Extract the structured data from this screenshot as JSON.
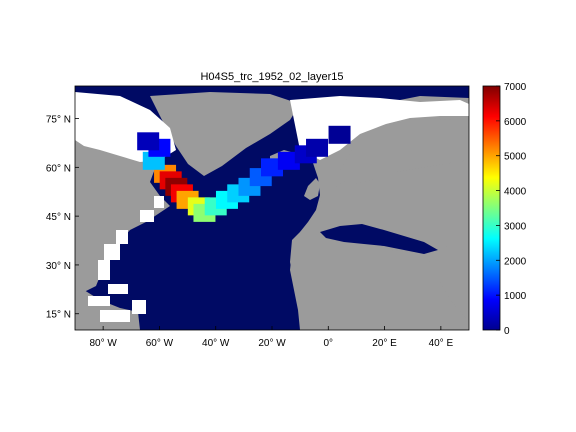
{
  "title": "H04S5_trc_1952_02_layer15",
  "map": {
    "lon_ticks": [
      {
        "deg": "80",
        "hemi": "W"
      },
      {
        "deg": "60",
        "hemi": "W"
      },
      {
        "deg": "40",
        "hemi": "W"
      },
      {
        "deg": "20",
        "hemi": "W"
      },
      {
        "deg": "0",
        "hemi": ""
      },
      {
        "deg": "20",
        "hemi": "E"
      },
      {
        "deg": "40",
        "hemi": "E"
      }
    ],
    "lat_ticks": [
      {
        "deg": "75",
        "hemi": "N"
      },
      {
        "deg": "60",
        "hemi": "N"
      },
      {
        "deg": "45",
        "hemi": "N"
      },
      {
        "deg": "30",
        "hemi": "N"
      },
      {
        "deg": "15",
        "hemi": "N"
      }
    ],
    "colors": {
      "land": "#9b9b9b",
      "ocean_low": "#000a64",
      "no_data": "#ffffff"
    }
  },
  "colorbar": {
    "min": 0,
    "max": 7000,
    "ticks": [
      "0",
      "1000",
      "2000",
      "3000",
      "4000",
      "5000",
      "6000",
      "7000"
    ],
    "colormap": "jet"
  },
  "chart_data": {
    "type": "heatmap",
    "title": "H04S5_trc_1952_02_layer15",
    "xlabel": "",
    "ylabel": "",
    "lon_range_deg": [
      -90,
      50
    ],
    "lat_range_deg": [
      10,
      85
    ],
    "value_range": [
      0,
      7000
    ],
    "x_tick_labels": [
      "80° W",
      "60° W",
      "40° W",
      "20° W",
      "0°",
      "20° E",
      "40° E"
    ],
    "y_tick_labels": [
      "75° N",
      "60° N",
      "45° N",
      "30° N",
      "15° N"
    ],
    "colorbar_ticks": [
      0,
      1000,
      2000,
      3000,
      4000,
      5000,
      6000,
      7000
    ],
    "plume_cells": [
      {
        "lon": -58,
        "lat": 58,
        "value": 5200
      },
      {
        "lon": -56,
        "lat": 56,
        "value": 6300
      },
      {
        "lon": -54,
        "lat": 54,
        "value": 6900
      },
      {
        "lon": -52,
        "lat": 52,
        "value": 6200
      },
      {
        "lon": -50,
        "lat": 50,
        "value": 5000
      },
      {
        "lon": -46,
        "lat": 48,
        "value": 4200
      },
      {
        "lon": -44,
        "lat": 46,
        "value": 3600
      },
      {
        "lon": -40,
        "lat": 48,
        "value": 3000
      },
      {
        "lon": -36,
        "lat": 50,
        "value": 2600
      },
      {
        "lon": -32,
        "lat": 52,
        "value": 2300
      },
      {
        "lon": -28,
        "lat": 54,
        "value": 1900
      },
      {
        "lon": -24,
        "lat": 57,
        "value": 1500
      },
      {
        "lon": -20,
        "lat": 60,
        "value": 1100
      },
      {
        "lon": -14,
        "lat": 62,
        "value": 800
      },
      {
        "lon": -8,
        "lat": 64,
        "value": 500
      },
      {
        "lon": -4,
        "lat": 66,
        "value": 300
      },
      {
        "lon": 4,
        "lat": 70,
        "value": 150
      },
      {
        "lon": -62,
        "lat": 62,
        "value": 2200
      },
      {
        "lon": -60,
        "lat": 66,
        "value": 900
      },
      {
        "lon": -64,
        "lat": 68,
        "value": 400
      }
    ]
  }
}
